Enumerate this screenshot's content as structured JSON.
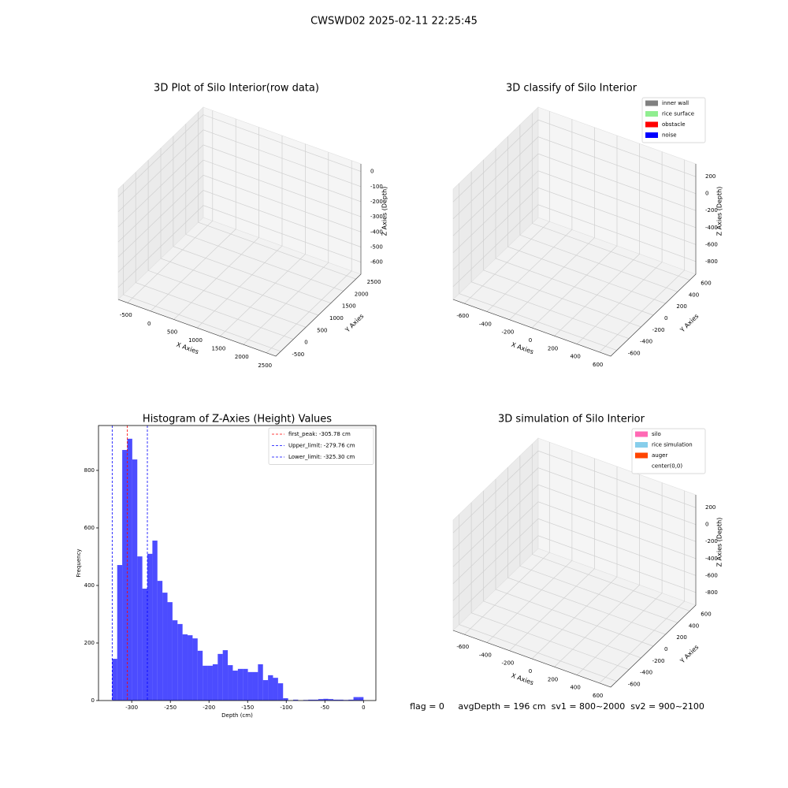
{
  "title": "CWSWD02 2025-02-11 22:25:45",
  "footer": "flag = 0     avgDepth = 196 cm  sv1 = 800~2000  sv2 = 900~2100",
  "chart_data": [
    {
      "type": "scatter3d",
      "title": "3D Plot of Silo Interior(row data)",
      "xlabel": "X Axies",
      "ylabel": "Y Axies",
      "zlabel": "Z Axies (Depth)",
      "xlim": [
        -700,
        2700
      ],
      "ylim": [
        -700,
        2700
      ],
      "zlim": [
        -680,
        50
      ],
      "xticks": [
        -500,
        0,
        500,
        1000,
        1500,
        2000,
        2500
      ],
      "yticks": [
        -500,
        0,
        500,
        1000,
        1500,
        2000,
        2500
      ],
      "zticks": [
        0,
        -100,
        -200,
        -300,
        -400,
        -500,
        -600
      ],
      "grid": true
    },
    {
      "type": "scatter3d",
      "title": "3D classify of Silo Interior",
      "xlabel": "X Axies",
      "ylabel": "Y Axies",
      "zlabel": "Z Axies (Depth)",
      "xlim": [
        -700,
        700
      ],
      "ylim": [
        -700,
        700
      ],
      "zlim": [
        -950,
        350
      ],
      "xticks": [
        -600,
        -400,
        -200,
        0,
        200,
        400,
        600
      ],
      "yticks": [
        -600,
        -400,
        -200,
        0,
        200,
        400,
        600
      ],
      "zticks": [
        200,
        0,
        -200,
        -400,
        -600,
        -800
      ],
      "grid": true,
      "legend": "upper right",
      "legend_entries": [
        {
          "name": "inner wall",
          "color": "#808080"
        },
        {
          "name": "rice surface",
          "color": "#90ee90"
        },
        {
          "name": "obstacle",
          "color": "#ff0000"
        },
        {
          "name": "noise",
          "color": "#0000ff"
        }
      ]
    },
    {
      "type": "histogram",
      "title": "Histogram of Z-Axies (Height) Values",
      "xlabel": "Depth (cm)",
      "ylabel": "Frequency",
      "color": "#0000ff",
      "alpha": 0.7,
      "xlim": [
        -343,
        16
      ],
      "ylim": [
        0,
        956
      ],
      "xticks": [
        -300,
        -250,
        -200,
        -150,
        -100,
        -50,
        0
      ],
      "yticks": [
        0,
        200,
        400,
        600,
        800
      ],
      "legend": "upper right",
      "bins": [
        -325.3,
        -318.79,
        -312.29,
        -305.78,
        -299.28,
        -292.77,
        -286.26,
        -279.76,
        -273.25,
        -266.75,
        -260.24,
        -253.73,
        -247.23,
        -240.72,
        -234.22,
        -227.71,
        -221.2,
        -214.7,
        -208.19,
        -201.69,
        -195.18,
        -188.67,
        -182.17,
        -175.66,
        -169.16,
        -162.65,
        -156.14,
        -149.64,
        -143.13,
        -136.63,
        -130.12,
        -123.61,
        -117.11,
        -110.6,
        -104.1,
        -97.59,
        -91.08,
        -84.58,
        -78.07,
        -71.57,
        -65.06,
        -58.55,
        -52.05,
        -45.54,
        -39.04,
        -32.53,
        -26.02,
        -19.52,
        -13.01,
        -6.51,
        0
      ],
      "values": [
        145,
        471,
        871,
        910,
        838,
        501,
        389,
        510,
        556,
        416,
        375,
        342,
        279,
        266,
        230,
        227,
        216,
        173,
        121,
        121,
        126,
        162,
        175,
        123,
        104,
        110,
        110,
        99,
        99,
        126,
        71,
        88,
        79,
        60,
        8,
        0,
        3,
        0,
        2,
        3,
        3,
        5,
        6,
        5,
        3,
        3,
        2,
        3,
        12,
        12
      ],
      "vlines": [
        {
          "name": "first_peak: -305.78 cm",
          "value": -305.78,
          "color": "#ff0000"
        },
        {
          "name": "Upper_limit: -279.76 cm",
          "value": -279.76,
          "color": "#0000ff"
        },
        {
          "name": "Lower_limit: -325.30 cm",
          "value": -325.3,
          "color": "#0000ff"
        }
      ]
    },
    {
      "type": "surface3d",
      "title": "3D simulation of Silo Interior",
      "xlabel": "X Axies",
      "ylabel": "Y Axies",
      "zlabel": "Z Axies (Depth)",
      "xlim": [
        -700,
        700
      ],
      "ylim": [
        -700,
        700
      ],
      "zlim": [
        -950,
        350
      ],
      "xticks": [
        -600,
        -400,
        -200,
        0,
        200,
        400,
        600
      ],
      "yticks": [
        -600,
        -400,
        -200,
        0,
        200,
        400,
        600
      ],
      "zticks": [
        200,
        0,
        -200,
        -400,
        -600,
        -800
      ],
      "grid": true,
      "legend": "upper right",
      "legend_entries": [
        {
          "name": "silo",
          "color": "#ff69b4"
        },
        {
          "name": "rice simulation",
          "color": "#87ceeb"
        },
        {
          "name": "auger",
          "color": "#ff4500"
        },
        {
          "name": "center(0,0)",
          "color": "#ffffff"
        }
      ]
    }
  ]
}
